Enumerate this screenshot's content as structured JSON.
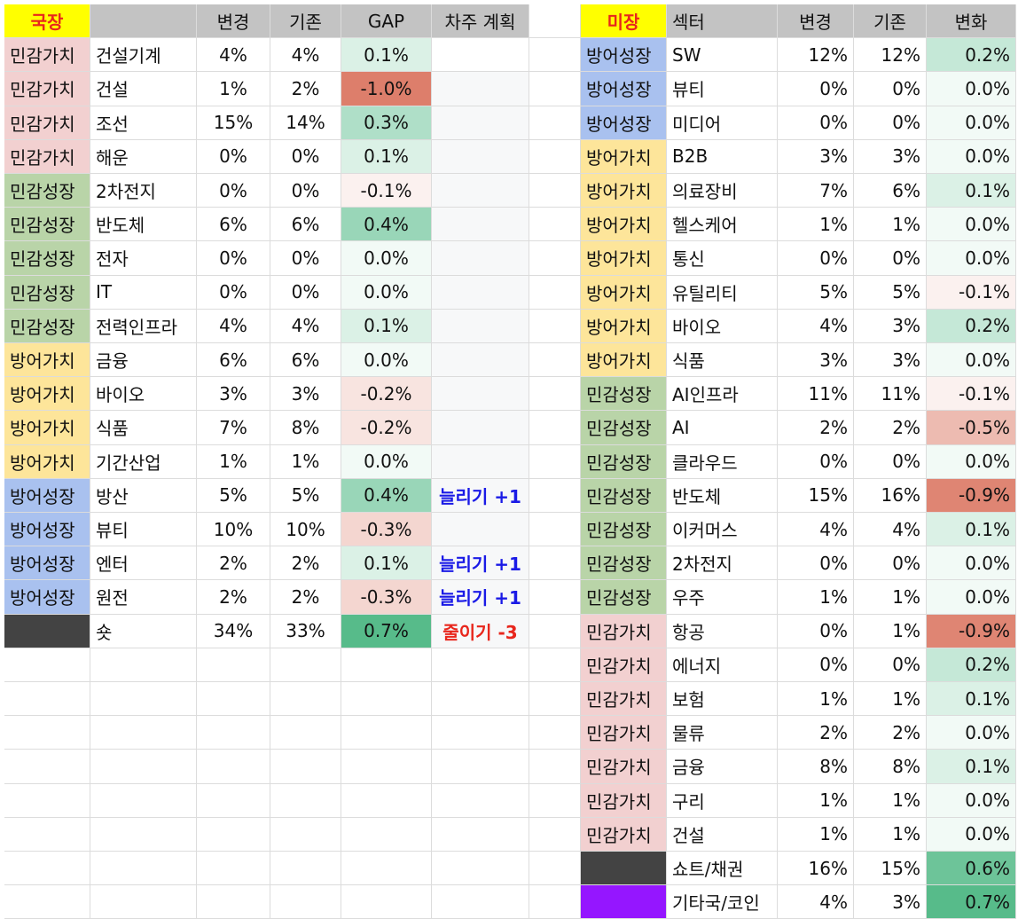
{
  "group_colors": {
    "민감가치": "#f2d0d0",
    "민감성장": "#b9d4a8",
    "방어가치": "#fde59a",
    "방어성장": "#a9c1ef"
  },
  "left": {
    "header": {
      "market": "국장",
      "change": "변경",
      "prev": "기존",
      "gap": "GAP",
      "plan": "차주 계획"
    },
    "rows": [
      {
        "group": "민감가치",
        "sector": "건설기계",
        "change": "4%",
        "prev": "4%",
        "gap": "0.1%"
      },
      {
        "group": "민감가치",
        "sector": "건설",
        "change": "1%",
        "prev": "2%",
        "gap": "-1.0%"
      },
      {
        "group": "민감가치",
        "sector": "조선",
        "change": "15%",
        "prev": "14%",
        "gap": "0.3%"
      },
      {
        "group": "민감가치",
        "sector": "해운",
        "change": "0%",
        "prev": "0%",
        "gap": "0.1%"
      },
      {
        "group": "민감성장",
        "sector": "2차전지",
        "change": "0%",
        "prev": "0%",
        "gap": "-0.1%"
      },
      {
        "group": "민감성장",
        "sector": "반도체",
        "change": "6%",
        "prev": "6%",
        "gap": "0.4%"
      },
      {
        "group": "민감성장",
        "sector": "전자",
        "change": "0%",
        "prev": "0%",
        "gap": "0.0%"
      },
      {
        "group": "민감성장",
        "sector": "IT",
        "change": "0%",
        "prev": "0%",
        "gap": "0.0%"
      },
      {
        "group": "민감성장",
        "sector": "전력인프라",
        "change": "4%",
        "prev": "4%",
        "gap": "0.1%"
      },
      {
        "group": "방어가치",
        "sector": "금융",
        "change": "6%",
        "prev": "6%",
        "gap": "0.0%"
      },
      {
        "group": "방어가치",
        "sector": "바이오",
        "change": "3%",
        "prev": "3%",
        "gap": "-0.2%"
      },
      {
        "group": "방어가치",
        "sector": "식품",
        "change": "7%",
        "prev": "8%",
        "gap": "-0.2%"
      },
      {
        "group": "방어가치",
        "sector": "기간산업",
        "change": "1%",
        "prev": "1%",
        "gap": "0.0%"
      },
      {
        "group": "방어성장",
        "sector": "방산",
        "change": "5%",
        "prev": "5%",
        "gap": "0.4%",
        "plan": "늘리기 +1",
        "plan_color": "#1a1ae6"
      },
      {
        "group": "방어성장",
        "sector": "뷰티",
        "change": "10%",
        "prev": "10%",
        "gap": "-0.3%"
      },
      {
        "group": "방어성장",
        "sector": "엔터",
        "change": "2%",
        "prev": "2%",
        "gap": "0.1%",
        "plan": "늘리기 +1",
        "plan_color": "#1a1ae6"
      },
      {
        "group": "방어성장",
        "sector": "원전",
        "change": "2%",
        "prev": "2%",
        "gap": "-0.3%",
        "plan": "늘리기 +1",
        "plan_color": "#1a1ae6"
      },
      {
        "fill": "#434343",
        "sector": "숏",
        "change": "34%",
        "prev": "33%",
        "gap": "0.7%",
        "plan": "줄이기 -3",
        "plan_color": "#e8261c"
      }
    ]
  },
  "right": {
    "header": {
      "market": "미장",
      "sector": "섹터",
      "change": "변경",
      "prev": "기존",
      "gap": "변화"
    },
    "rows": [
      {
        "group": "방어성장",
        "sector": "SW",
        "change": "12%",
        "prev": "12%",
        "gap": "0.2%"
      },
      {
        "group": "방어성장",
        "sector": "뷰티",
        "change": "0%",
        "prev": "0%",
        "gap": "0.0%"
      },
      {
        "group": "방어성장",
        "sector": "미디어",
        "change": "0%",
        "prev": "0%",
        "gap": "0.0%"
      },
      {
        "group": "방어가치",
        "sector": "B2B",
        "change": "3%",
        "prev": "3%",
        "gap": "0.0%"
      },
      {
        "group": "방어가치",
        "sector": "의료장비",
        "change": "7%",
        "prev": "6%",
        "gap": "0.1%"
      },
      {
        "group": "방어가치",
        "sector": "헬스케어",
        "change": "1%",
        "prev": "1%",
        "gap": "0.0%"
      },
      {
        "group": "방어가치",
        "sector": "통신",
        "change": "0%",
        "prev": "0%",
        "gap": "0.0%"
      },
      {
        "group": "방어가치",
        "sector": "유틸리티",
        "change": "5%",
        "prev": "5%",
        "gap": "-0.1%"
      },
      {
        "group": "방어가치",
        "sector": "바이오",
        "change": "4%",
        "prev": "3%",
        "gap": "0.2%"
      },
      {
        "group": "방어가치",
        "sector": "식품",
        "change": "3%",
        "prev": "3%",
        "gap": "0.0%"
      },
      {
        "group": "민감성장",
        "sector": "AI인프라",
        "change": "11%",
        "prev": "11%",
        "gap": "-0.1%"
      },
      {
        "group": "민감성장",
        "sector": "AI",
        "change": "2%",
        "prev": "2%",
        "gap": "-0.5%"
      },
      {
        "group": "민감성장",
        "sector": "클라우드",
        "change": "0%",
        "prev": "0%",
        "gap": "0.0%"
      },
      {
        "group": "민감성장",
        "sector": "반도체",
        "change": "15%",
        "prev": "16%",
        "gap": "-0.9%"
      },
      {
        "group": "민감성장",
        "sector": "이커머스",
        "change": "4%",
        "prev": "4%",
        "gap": "0.1%"
      },
      {
        "group": "민감성장",
        "sector": "2차전지",
        "change": "0%",
        "prev": "0%",
        "gap": "0.0%"
      },
      {
        "group": "민감성장",
        "sector": "우주",
        "change": "1%",
        "prev": "1%",
        "gap": "0.0%"
      },
      {
        "group": "민감가치",
        "sector": "항공",
        "change": "0%",
        "prev": "1%",
        "gap": "-0.9%"
      },
      {
        "group": "민감가치",
        "sector": "에너지",
        "change": "0%",
        "prev": "0%",
        "gap": "0.2%"
      },
      {
        "group": "민감가치",
        "sector": "보험",
        "change": "1%",
        "prev": "1%",
        "gap": "0.1%"
      },
      {
        "group": "민감가치",
        "sector": "물류",
        "change": "2%",
        "prev": "2%",
        "gap": "0.0%"
      },
      {
        "group": "민감가치",
        "sector": "금융",
        "change": "8%",
        "prev": "8%",
        "gap": "0.1%"
      },
      {
        "group": "민감가치",
        "sector": "구리",
        "change": "1%",
        "prev": "1%",
        "gap": "0.0%"
      },
      {
        "group": "민감가치",
        "sector": "건설",
        "change": "1%",
        "prev": "1%",
        "gap": "0.0%"
      },
      {
        "fill": "#434343",
        "sector": "쇼트/채권",
        "change": "16%",
        "prev": "15%",
        "gap": "0.6%"
      },
      {
        "fill": "#9516ff",
        "sector": "기타국/코인",
        "change": "4%",
        "prev": "3%",
        "gap": "0.7%"
      }
    ]
  }
}
